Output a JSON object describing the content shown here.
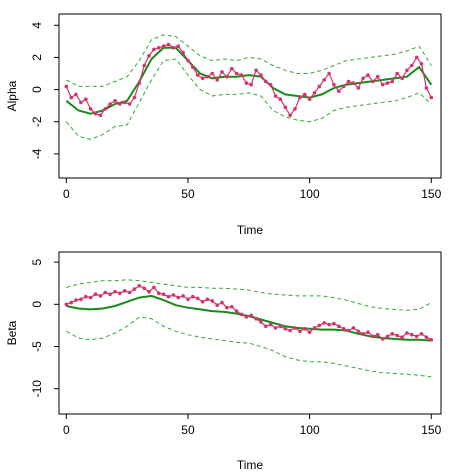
{
  "colors": {
    "observed": "#d6336c",
    "smooth": "#1a8a1a",
    "band": "#33aa33",
    "axis": "#000000"
  },
  "chart_data": [
    {
      "type": "line",
      "xlabel": "Time",
      "ylabel": "Alpha",
      "xlim": [
        -3,
        154
      ],
      "ylim": [
        -5.5,
        4.7
      ],
      "xticks": [
        0,
        50,
        100,
        150
      ],
      "yticks": [
        -4,
        -2,
        0,
        2,
        4
      ],
      "series": [
        {
          "role": "observed",
          "style": "points-and-lines",
          "x": [
            0,
            2,
            4,
            6,
            8,
            10,
            12,
            14,
            16,
            18,
            20,
            22,
            24,
            26,
            28,
            30,
            32,
            34,
            36,
            38,
            40,
            42,
            44,
            46,
            48,
            50,
            52,
            54,
            56,
            58,
            60,
            62,
            64,
            66,
            68,
            70,
            72,
            74,
            76,
            78,
            80,
            82,
            84,
            86,
            88,
            90,
            92,
            94,
            96,
            98,
            100,
            102,
            104,
            106,
            108,
            110,
            112,
            114,
            116,
            118,
            120,
            122,
            124,
            126,
            128,
            130,
            132,
            134,
            136,
            138,
            140,
            142,
            144,
            146,
            148,
            150
          ],
          "y": [
            0.2,
            -0.5,
            -0.3,
            -0.8,
            -0.6,
            -1.2,
            -1.5,
            -1.6,
            -1.2,
            -0.9,
            -0.7,
            -0.9,
            -0.8,
            -0.9,
            -0.5,
            0.4,
            1.5,
            2.1,
            2.5,
            2.6,
            2.7,
            2.8,
            2.6,
            2.7,
            2.3,
            1.8,
            1.4,
            0.9,
            0.7,
            0.8,
            1.0,
            0.6,
            1.1,
            0.8,
            1.3,
            1.0,
            0.9,
            0.4,
            0.3,
            1.2,
            0.9,
            0.5,
            0.3,
            -0.4,
            -0.6,
            -1.1,
            -1.6,
            -1.2,
            -0.5,
            -0.3,
            -0.6,
            -0.2,
            0.2,
            0.6,
            1.0,
            0.3,
            -0.1,
            0.2,
            0.5,
            0.4,
            0.1,
            0.7,
            0.9,
            0.5,
            0.8,
            0.3,
            0.4,
            0.5,
            1.0,
            0.7,
            1.2,
            1.5,
            2.0,
            1.6,
            0.1,
            -0.5
          ]
        },
        {
          "role": "smooth",
          "x": [
            0,
            5,
            10,
            15,
            20,
            25,
            30,
            35,
            40,
            45,
            50,
            55,
            60,
            65,
            70,
            75,
            80,
            85,
            90,
            95,
            100,
            105,
            110,
            115,
            120,
            125,
            130,
            135,
            140,
            145,
            150
          ],
          "y": [
            -0.7,
            -1.3,
            -1.5,
            -1.3,
            -0.9,
            -0.7,
            0.5,
            1.9,
            2.6,
            2.6,
            1.8,
            1.0,
            0.7,
            0.8,
            0.8,
            0.9,
            0.8,
            0.1,
            -0.3,
            -0.4,
            -0.5,
            -0.3,
            0.1,
            0.3,
            0.4,
            0.5,
            0.6,
            0.7,
            0.8,
            1.4,
            0.3
          ]
        },
        {
          "role": "upper",
          "x": [
            0,
            5,
            10,
            15,
            20,
            25,
            30,
            35,
            40,
            45,
            50,
            55,
            60,
            65,
            70,
            75,
            80,
            85,
            90,
            95,
            100,
            105,
            110,
            115,
            120,
            125,
            130,
            135,
            140,
            145,
            150
          ],
          "y": [
            0.6,
            0.2,
            0.2,
            0.2,
            0.5,
            0.8,
            1.8,
            3.1,
            3.4,
            3.3,
            2.7,
            2.1,
            1.8,
            1.9,
            1.8,
            2.0,
            1.9,
            1.5,
            1.2,
            1.0,
            1.0,
            1.2,
            1.5,
            1.8,
            1.9,
            2.0,
            2.1,
            2.2,
            2.4,
            2.7,
            1.5
          ]
        },
        {
          "role": "lower",
          "x": [
            0,
            5,
            10,
            15,
            20,
            25,
            30,
            35,
            40,
            45,
            50,
            55,
            60,
            65,
            70,
            75,
            80,
            85,
            90,
            95,
            100,
            105,
            110,
            115,
            120,
            125,
            130,
            135,
            140,
            145,
            150
          ],
          "y": [
            -2.0,
            -2.9,
            -3.1,
            -2.8,
            -2.3,
            -2.2,
            -0.8,
            0.6,
            1.8,
            1.9,
            0.9,
            0.0,
            -0.4,
            -0.3,
            -0.3,
            -0.2,
            -0.4,
            -1.3,
            -1.7,
            -1.9,
            -2.0,
            -1.8,
            -1.3,
            -1.1,
            -1.0,
            -0.9,
            -0.8,
            -0.7,
            -0.5,
            -0.2,
            -0.9
          ]
        }
      ]
    },
    {
      "type": "line",
      "xlabel": "Time",
      "ylabel": "Beta",
      "xlim": [
        -3,
        154
      ],
      "ylim": [
        -13,
        6.2
      ],
      "xticks": [
        0,
        50,
        100,
        150
      ],
      "yticks": [
        -10,
        -5,
        0,
        5
      ],
      "series": [
        {
          "role": "observed",
          "style": "points-and-lines",
          "x": [
            0,
            2,
            4,
            6,
            8,
            10,
            12,
            14,
            16,
            18,
            20,
            22,
            24,
            26,
            28,
            30,
            32,
            34,
            36,
            38,
            40,
            42,
            44,
            46,
            48,
            50,
            52,
            54,
            56,
            58,
            60,
            62,
            64,
            66,
            68,
            70,
            72,
            74,
            76,
            78,
            80,
            82,
            84,
            86,
            88,
            90,
            92,
            94,
            96,
            98,
            100,
            102,
            104,
            106,
            108,
            110,
            112,
            114,
            116,
            118,
            120,
            122,
            124,
            126,
            128,
            130,
            132,
            134,
            136,
            138,
            140,
            142,
            144,
            146,
            148,
            150
          ],
          "y": [
            0.0,
            0.2,
            0.5,
            0.6,
            0.9,
            0.8,
            1.2,
            1.0,
            1.4,
            1.2,
            1.5,
            1.3,
            1.6,
            1.4,
            1.8,
            2.2,
            1.9,
            1.5,
            2.0,
            1.3,
            1.2,
            0.9,
            1.1,
            0.8,
            1.0,
            0.6,
            0.9,
            0.7,
            0.3,
            0.6,
            0.4,
            -0.1,
            0.2,
            -0.4,
            -0.3,
            -0.8,
            -1.2,
            -1.5,
            -1.3,
            -1.7,
            -2.1,
            -2.6,
            -2.4,
            -2.8,
            -2.6,
            -2.9,
            -3.1,
            -2.8,
            -3.2,
            -2.9,
            -3.3,
            -2.8,
            -2.5,
            -2.2,
            -2.4,
            -2.3,
            -2.6,
            -2.9,
            -3.1,
            -2.8,
            -3.2,
            -3.5,
            -3.3,
            -3.8,
            -3.6,
            -4.1,
            -3.8,
            -3.5,
            -3.7,
            -3.9,
            -3.4,
            -3.6,
            -3.8,
            -3.5,
            -3.9,
            -4.2
          ]
        },
        {
          "role": "smooth",
          "x": [
            0,
            5,
            10,
            15,
            20,
            25,
            30,
            35,
            40,
            45,
            50,
            55,
            60,
            65,
            70,
            75,
            80,
            85,
            90,
            95,
            100,
            105,
            110,
            115,
            120,
            125,
            130,
            135,
            140,
            145,
            150
          ],
          "y": [
            -0.2,
            -0.5,
            -0.6,
            -0.5,
            -0.2,
            0.3,
            0.8,
            1.0,
            0.5,
            -0.1,
            -0.4,
            -0.6,
            -0.8,
            -0.9,
            -1.1,
            -1.4,
            -1.8,
            -2.2,
            -2.6,
            -2.8,
            -2.9,
            -3.0,
            -3.0,
            -3.1,
            -3.5,
            -3.8,
            -4.0,
            -4.1,
            -4.2,
            -4.2,
            -4.3
          ]
        },
        {
          "role": "upper",
          "x": [
            0,
            5,
            10,
            15,
            20,
            25,
            30,
            35,
            40,
            45,
            50,
            55,
            60,
            65,
            70,
            75,
            80,
            85,
            90,
            95,
            100,
            105,
            110,
            115,
            120,
            125,
            130,
            135,
            140,
            145,
            150
          ],
          "y": [
            2.0,
            2.4,
            2.6,
            2.8,
            2.8,
            2.9,
            2.8,
            2.6,
            2.4,
            2.2,
            2.0,
            2.0,
            1.9,
            1.9,
            1.8,
            1.7,
            1.4,
            1.2,
            1.1,
            1.0,
            1.0,
            1.0,
            0.8,
            0.5,
            0.1,
            -0.3,
            -0.5,
            -0.6,
            -0.7,
            -0.6,
            0.2
          ]
        },
        {
          "role": "lower",
          "x": [
            0,
            5,
            10,
            15,
            20,
            25,
            30,
            35,
            40,
            45,
            50,
            55,
            60,
            65,
            70,
            75,
            80,
            85,
            90,
            95,
            100,
            105,
            110,
            115,
            120,
            125,
            130,
            135,
            140,
            145,
            150
          ],
          "y": [
            -3.2,
            -4.0,
            -4.2,
            -4.0,
            -3.4,
            -2.6,
            -1.5,
            -1.7,
            -2.6,
            -3.2,
            -3.6,
            -3.9,
            -4.1,
            -4.3,
            -4.5,
            -4.6,
            -5.0,
            -5.5,
            -6.2,
            -6.6,
            -6.8,
            -6.8,
            -7.0,
            -7.3,
            -7.6,
            -7.9,
            -8.1,
            -8.2,
            -8.3,
            -8.4,
            -8.6
          ]
        }
      ]
    }
  ]
}
